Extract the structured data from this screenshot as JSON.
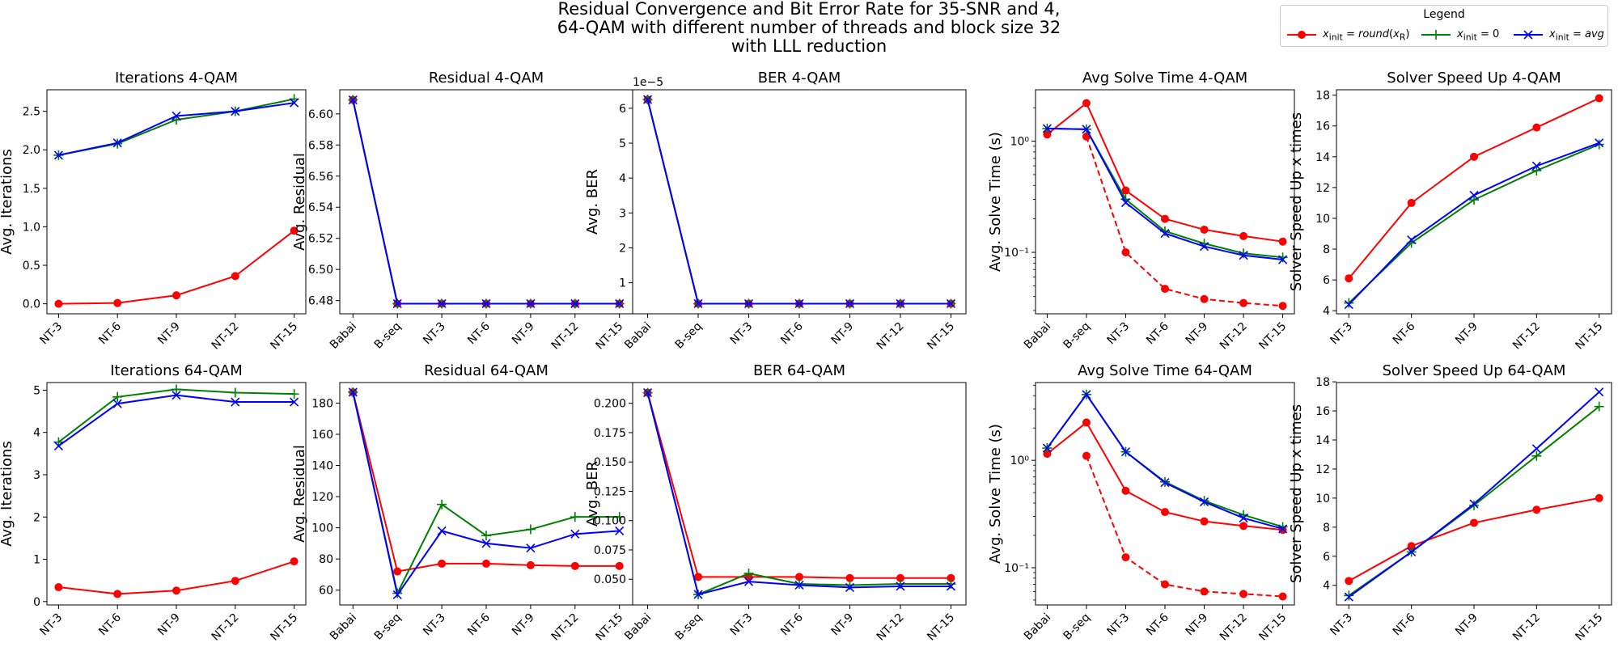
{
  "figure": {
    "title_lines": [
      "Residual Convergence and Bit Error Rate for 35-SNR and 4,",
      "64-QAM with different number of threads and block size 32",
      "with LLL reduction"
    ],
    "legend": {
      "title": "Legend",
      "items": [
        {
          "label": "x_init = round(x_R)",
          "color": "#ff0000",
          "marker": "circle"
        },
        {
          "label": "x_init = 0",
          "color": "#008000",
          "marker": "plus"
        },
        {
          "label": "x_init = avg",
          "color": "#0000ff",
          "marker": "x"
        }
      ]
    }
  },
  "chart_data": [
    {
      "type": "line",
      "title": "Iterations 4-QAM",
      "ylabel": "Avg. Iterations",
      "categories": [
        "NT-3",
        "NT-6",
        "NT-9",
        "NT-12",
        "NT-15"
      ],
      "ylim": [
        -0.13,
        2.78
      ],
      "yticks": [
        0.0,
        0.5,
        1.0,
        1.5,
        2.0,
        2.5
      ],
      "ytick_labels": [
        "0.0",
        "0.5",
        "1.0",
        "1.5",
        "2.0",
        "2.5"
      ],
      "series": [
        {
          "color": "#ff0000",
          "marker": "circle",
          "values": [
            0.0,
            0.01,
            0.11,
            0.36,
            0.95
          ]
        },
        {
          "color": "#008000",
          "marker": "plus",
          "values": [
            1.93,
            2.08,
            2.39,
            2.5,
            2.66
          ]
        },
        {
          "color": "#0000ff",
          "marker": "x",
          "values": [
            1.93,
            2.09,
            2.44,
            2.5,
            2.61
          ]
        }
      ]
    },
    {
      "type": "line",
      "title": "Residual 4-QAM",
      "ylabel": "Avg. Residual",
      "categories": [
        "Babai",
        "B-seq",
        "NT-3",
        "NT-6",
        "NT-9",
        "NT-12",
        "NT-15"
      ],
      "ylim": [
        6.4715,
        6.6155
      ],
      "yticks": [
        6.48,
        6.5,
        6.52,
        6.54,
        6.56,
        6.58,
        6.6
      ],
      "ytick_labels": [
        "6.48",
        "6.50",
        "6.52",
        "6.54",
        "6.56",
        "6.58",
        "6.60"
      ],
      "series": [
        {
          "color": "#ff0000",
          "marker": "circle",
          "values": [
            6.609,
            6.478,
            6.478,
            6.478,
            6.478,
            6.478,
            6.478
          ]
        },
        {
          "color": "#008000",
          "marker": "plus",
          "values": [
            6.609,
            6.478,
            6.478,
            6.478,
            6.478,
            6.478,
            6.478
          ]
        },
        {
          "color": "#0000ff",
          "marker": "x",
          "values": [
            6.609,
            6.478,
            6.478,
            6.478,
            6.478,
            6.478,
            6.478
          ]
        }
      ]
    },
    {
      "type": "line",
      "title": "BER 4-QAM",
      "ylabel": "Avg. BER",
      "offset_label": "1e−5",
      "categories": [
        "Babai",
        "B-seq",
        "NT-3",
        "NT-6",
        "NT-9",
        "NT-12",
        "NT-15"
      ],
      "ylim": [
        0.11,
        6.53
      ],
      "yticks": [
        1,
        2,
        3,
        4,
        5,
        6
      ],
      "ytick_labels": [
        "1",
        "2",
        "3",
        "4",
        "5",
        "6"
      ],
      "series": [
        {
          "color": "#ff0000",
          "marker": "circle",
          "values": [
            6.25,
            0.4,
            0.4,
            0.4,
            0.4,
            0.4,
            0.4
          ]
        },
        {
          "color": "#008000",
          "marker": "plus",
          "values": [
            6.25,
            0.4,
            0.4,
            0.4,
            0.4,
            0.4,
            0.4
          ]
        },
        {
          "color": "#0000ff",
          "marker": "x",
          "values": [
            6.25,
            0.4,
            0.4,
            0.4,
            0.4,
            0.4,
            0.4
          ]
        }
      ]
    },
    {
      "type": "line",
      "scale": "log",
      "title": "Avg Solve Time 4-QAM",
      "ylabel": "Avg. Solve Time (s)",
      "categories": [
        "Babai",
        "B-seq",
        "NT-3",
        "NT-6",
        "NT-9",
        "NT-12",
        "NT-15"
      ],
      "ylim": [
        0.028,
        2.9
      ],
      "yticks": [
        0.1,
        1.0
      ],
      "ytick_labels": [
        "10⁻¹",
        "10⁰"
      ],
      "series": [
        {
          "color": "#ff0000",
          "marker": "circle",
          "values": [
            1.15,
            2.2,
            0.36,
            0.2,
            0.16,
            0.14,
            0.125
          ]
        },
        {
          "color": "#ff0000",
          "marker": "circle",
          "dashed": true,
          "values": [
            null,
            1.1,
            0.1,
            0.047,
            0.038,
            0.035,
            0.033
          ]
        },
        {
          "color": "#008000",
          "marker": "plus",
          "values": [
            1.3,
            1.28,
            0.3,
            0.155,
            0.12,
            0.098,
            0.09
          ]
        },
        {
          "color": "#0000ff",
          "marker": "x",
          "values": [
            1.3,
            1.28,
            0.28,
            0.148,
            0.113,
            0.094,
            0.086
          ]
        }
      ]
    },
    {
      "type": "line",
      "title": "Solver Speed Up 4-QAM",
      "ylabel": "Solver Speed Up x times",
      "categories": [
        "NT-3",
        "NT-6",
        "NT-9",
        "NT-12",
        "NT-15"
      ],
      "ylim": [
        3.8,
        18.35
      ],
      "yticks": [
        4,
        6,
        8,
        10,
        12,
        14,
        16,
        18
      ],
      "ytick_labels": [
        "4",
        "6",
        "8",
        "10",
        "12",
        "14",
        "16",
        "18"
      ],
      "series": [
        {
          "color": "#ff0000",
          "marker": "circle",
          "values": [
            6.1,
            11.0,
            14.0,
            15.9,
            17.8
          ]
        },
        {
          "color": "#008000",
          "marker": "plus",
          "values": [
            4.5,
            8.4,
            11.2,
            13.1,
            14.8
          ]
        },
        {
          "color": "#0000ff",
          "marker": "x",
          "values": [
            4.4,
            8.6,
            11.5,
            13.4,
            14.9
          ]
        }
      ]
    },
    {
      "type": "line",
      "title": "Iterations 64-QAM",
      "ylabel": "Avg. Iterations",
      "categories": [
        "NT-3",
        "NT-6",
        "NT-9",
        "NT-12",
        "NT-15"
      ],
      "ylim": [
        -0.08,
        5.18
      ],
      "yticks": [
        0,
        1,
        2,
        3,
        4,
        5
      ],
      "ytick_labels": [
        "0",
        "1",
        "2",
        "3",
        "4",
        "5"
      ],
      "series": [
        {
          "color": "#ff0000",
          "marker": "circle",
          "values": [
            0.34,
            0.18,
            0.26,
            0.49,
            0.95
          ]
        },
        {
          "color": "#008000",
          "marker": "plus",
          "values": [
            3.77,
            4.84,
            5.02,
            4.94,
            4.91
          ]
        },
        {
          "color": "#0000ff",
          "marker": "x",
          "values": [
            3.68,
            4.68,
            4.88,
            4.72,
            4.72
          ]
        }
      ]
    },
    {
      "type": "line",
      "title": "Residual 64-QAM",
      "ylabel": "Avg. Residual",
      "categories": [
        "Babai",
        "B-seq",
        "NT-3",
        "NT-6",
        "NT-9",
        "NT-12",
        "NT-15"
      ],
      "ylim": [
        50.5,
        193.2
      ],
      "yticks": [
        60,
        80,
        100,
        120,
        140,
        160,
        180
      ],
      "ytick_labels": [
        "60",
        "80",
        "100",
        "120",
        "140",
        "160",
        "180"
      ],
      "series": [
        {
          "color": "#ff0000",
          "marker": "circle",
          "values": [
            187,
            72,
            77,
            77,
            76,
            75.5,
            75.5
          ]
        },
        {
          "color": "#008000",
          "marker": "plus",
          "values": [
            187,
            58,
            115,
            95,
            99,
            107,
            107
          ]
        },
        {
          "color": "#0000ff",
          "marker": "x",
          "values": [
            187,
            57,
            98,
            90,
            87,
            96,
            98
          ]
        }
      ]
    },
    {
      "type": "line",
      "title": "BER 64-QAM",
      "ylabel": "Avg. BER",
      "categories": [
        "Babai",
        "B-seq",
        "NT-3",
        "NT-6",
        "NT-9",
        "NT-12",
        "NT-15"
      ],
      "ylim": [
        0.0281,
        0.2177
      ],
      "yticks": [
        0.05,
        0.075,
        0.1,
        0.125,
        0.15,
        0.175,
        0.2
      ],
      "ytick_labels": [
        "0.050",
        "0.075",
        "0.100",
        "0.125",
        "0.150",
        "0.175",
        "0.200"
      ],
      "series": [
        {
          "color": "#ff0000",
          "marker": "circle",
          "values": [
            0.209,
            0.052,
            0.052,
            0.052,
            0.051,
            0.051,
            0.051
          ]
        },
        {
          "color": "#008000",
          "marker": "plus",
          "values": [
            0.209,
            0.037,
            0.055,
            0.046,
            0.045,
            0.046,
            0.046
          ]
        },
        {
          "color": "#0000ff",
          "marker": "x",
          "values": [
            0.209,
            0.037,
            0.048,
            0.045,
            0.043,
            0.044,
            0.044
          ]
        }
      ]
    },
    {
      "type": "line",
      "scale": "log",
      "title": "Avg Solve Time 64-QAM",
      "ylabel": "Avg. Solve Time (s)",
      "categories": [
        "Babai",
        "B-seq",
        "NT-3",
        "NT-6",
        "NT-9",
        "NT-12",
        "NT-15"
      ],
      "ylim": [
        0.045,
        5.3
      ],
      "yticks": [
        0.1,
        1.0
      ],
      "ytick_labels": [
        "10⁻¹",
        "10⁰"
      ],
      "series": [
        {
          "color": "#ff0000",
          "marker": "circle",
          "values": [
            1.15,
            2.25,
            0.52,
            0.33,
            0.27,
            0.245,
            0.225
          ]
        },
        {
          "color": "#ff0000",
          "marker": "circle",
          "dashed": true,
          "values": [
            null,
            1.1,
            0.125,
            0.07,
            0.06,
            0.057,
            0.054
          ]
        },
        {
          "color": "#008000",
          "marker": "plus",
          "values": [
            1.3,
            4.1,
            1.2,
            0.63,
            0.42,
            0.31,
            0.24
          ]
        },
        {
          "color": "#0000ff",
          "marker": "x",
          "values": [
            1.3,
            4.1,
            1.2,
            0.62,
            0.41,
            0.29,
            0.23
          ]
        }
      ]
    },
    {
      "type": "line",
      "title": "Solver Speed Up 64-QAM",
      "ylabel": "Solver Speed Up x times",
      "categories": [
        "NT-3",
        "NT-6",
        "NT-9",
        "NT-12",
        "NT-15"
      ],
      "ylim": [
        2.65,
        17.95
      ],
      "yticks": [
        4,
        6,
        8,
        10,
        12,
        14,
        16,
        18
      ],
      "ytick_labels": [
        "4",
        "6",
        "8",
        "10",
        "12",
        "14",
        "16",
        "18"
      ],
      "series": [
        {
          "color": "#ff0000",
          "marker": "circle",
          "values": [
            4.3,
            6.7,
            8.3,
            9.2,
            10.0
          ]
        },
        {
          "color": "#008000",
          "marker": "plus",
          "values": [
            3.3,
            6.3,
            9.5,
            12.9,
            16.3
          ]
        },
        {
          "color": "#0000ff",
          "marker": "x",
          "values": [
            3.2,
            6.3,
            9.6,
            13.4,
            17.3
          ]
        }
      ]
    }
  ]
}
